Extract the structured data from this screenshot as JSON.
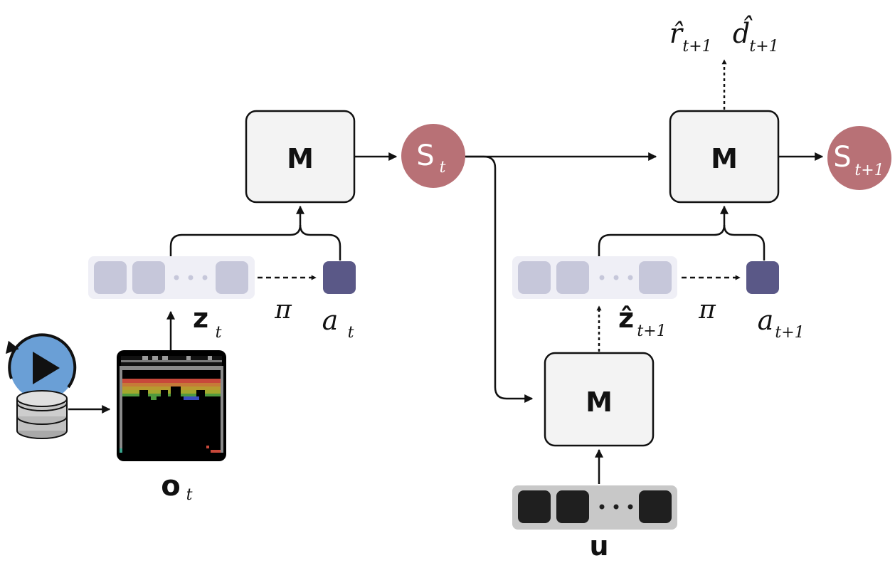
{
  "diagram": {
    "nodes": {
      "model_t": {
        "label": "M"
      },
      "model_t1": {
        "label": "M"
      },
      "model_dyn": {
        "label": "M"
      },
      "state_t": {
        "label": "S",
        "sub": "t"
      },
      "state_t1": {
        "label": "S",
        "sub": "t+1"
      }
    },
    "labels": {
      "z_t": {
        "main": "z",
        "sub": "t"
      },
      "z_hat_t1": {
        "main": "ẑ",
        "sub": "t+1"
      },
      "a_t": {
        "main": "a",
        "sub": "t"
      },
      "a_t1": {
        "main": "a",
        "sub": "t+1"
      },
      "pi_left": "π",
      "pi_right": "π",
      "o_t": {
        "main": "o",
        "sub": "t"
      },
      "u": "u",
      "r_hat": {
        "main": "r̂",
        "sub": "t+1"
      },
      "d_hat": {
        "main": "d̂",
        "sub": "t+1"
      }
    },
    "colors": {
      "state": "#b87176",
      "action": "#5a5887",
      "token_light": "#c6c7da",
      "token_bg": "#efeff6",
      "token_dark": "#1f1f1f",
      "token_dark_bg": "#c8c8c8",
      "model_fill": "#f3f3f3",
      "play_button": "#6a9fd6"
    },
    "icons": {
      "replay": "play-button-icon",
      "database": "database-icon",
      "game_frame": "atari-breakout-frame"
    }
  }
}
